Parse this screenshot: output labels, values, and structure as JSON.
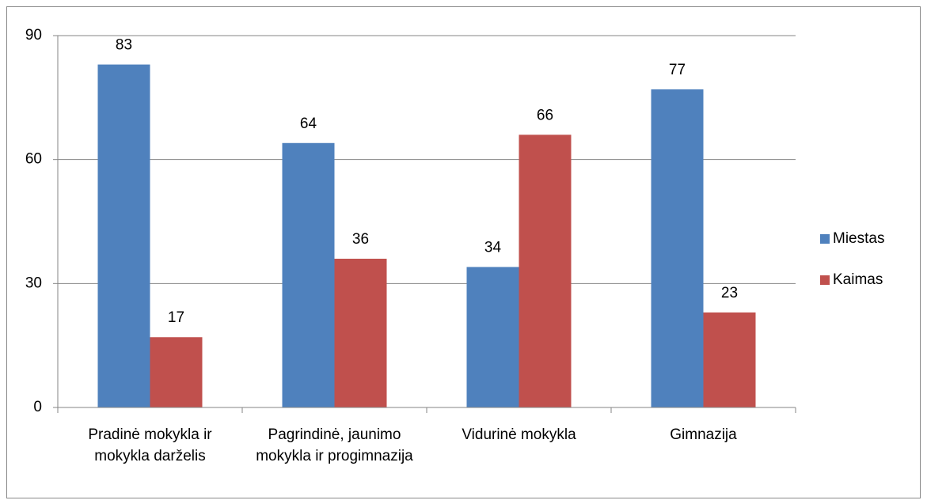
{
  "chart_data": {
    "type": "bar",
    "categories": [
      "Pradinė mokykla ir mokykla darželis",
      "Pagrindinė, jaunimo mokykla ir progimnazija",
      "Vidurinė mokykla",
      "Gimnazija"
    ],
    "series": [
      {
        "name": "Miestas",
        "color": "#4f81bd",
        "values": [
          83,
          64,
          34,
          77
        ]
      },
      {
        "name": "Kaimas",
        "color": "#c0504d",
        "values": [
          17,
          36,
          66,
          23
        ]
      }
    ],
    "ylim": [
      0,
      90
    ],
    "yticks": [
      0,
      30,
      60,
      90
    ],
    "grid": true,
    "legend": "right"
  }
}
